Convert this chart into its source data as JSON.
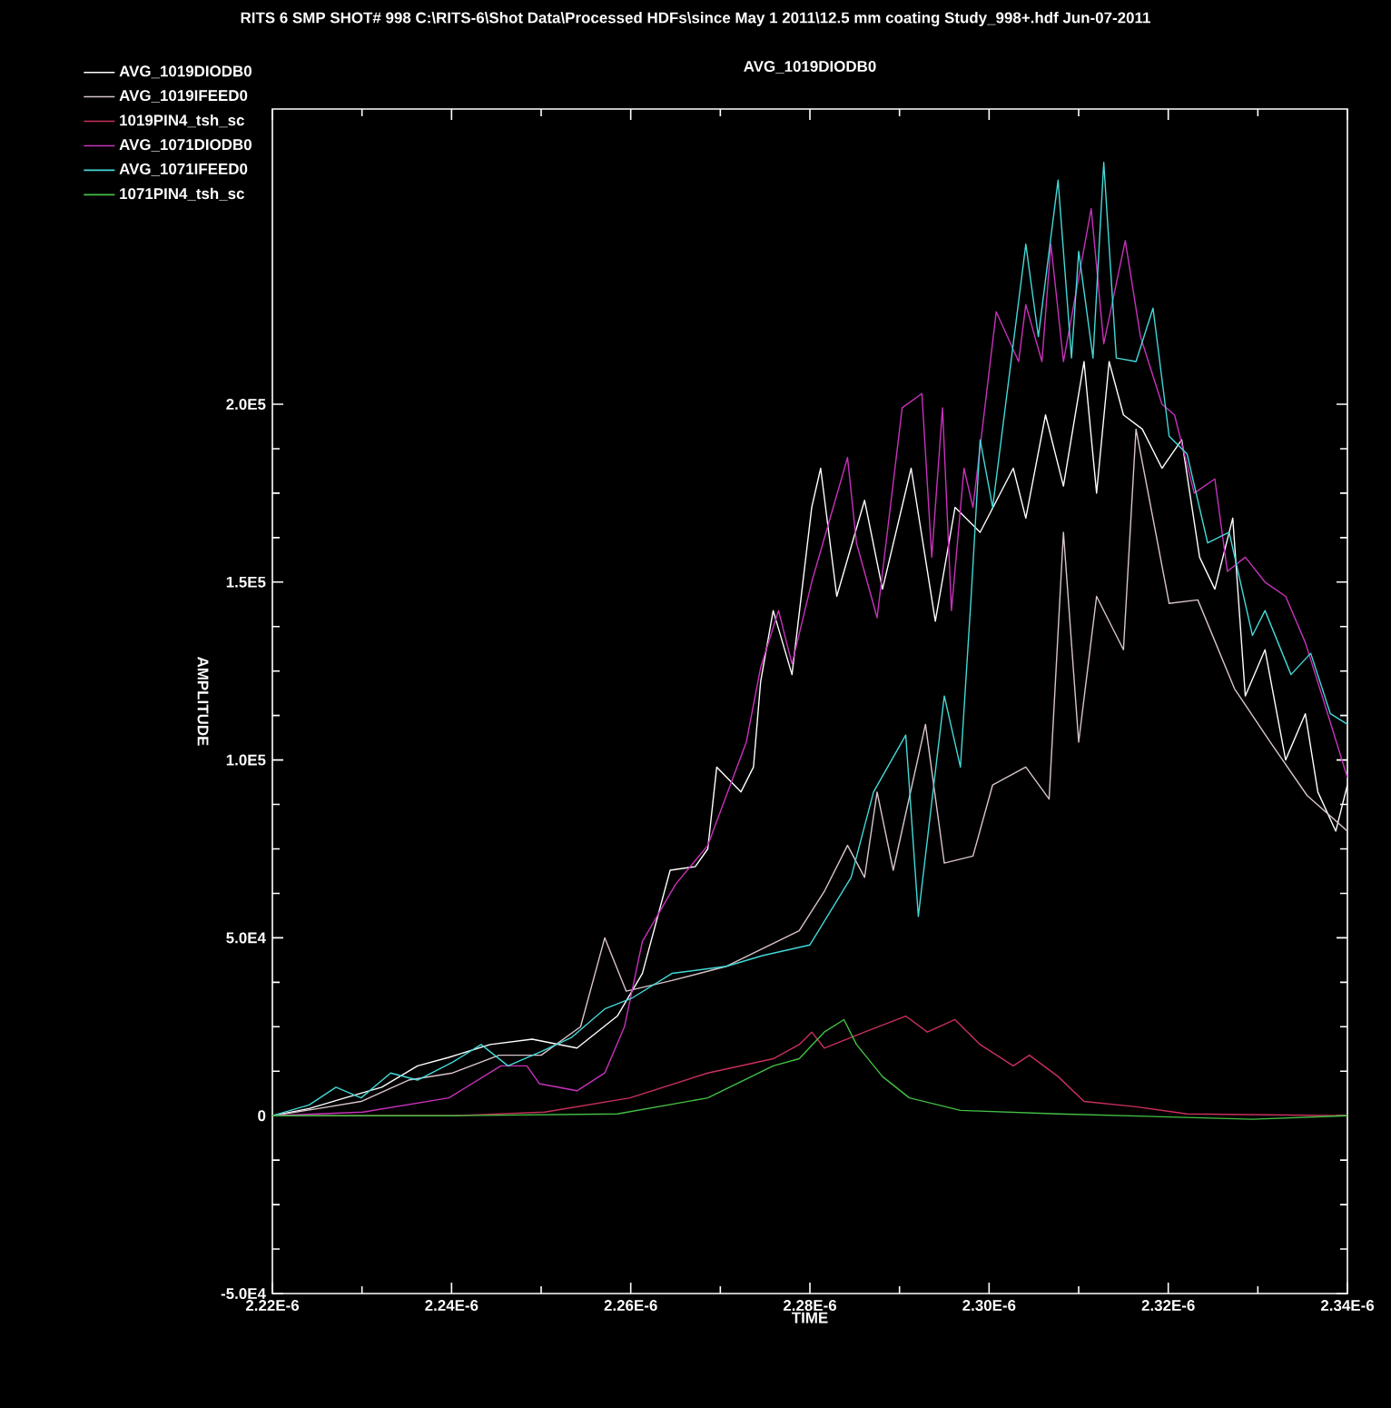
{
  "chart_data": {
    "type": "line",
    "title": "RITS 6 SMP SHOT# 998   C:\\RITS-6\\Shot Data\\Processed HDFs\\since May 1 2011\\12.5 mm coating Study_998+.hdf   Jun-07-2011",
    "subtitle": "AVG_1019DIODB0",
    "xlabel": "TIME",
    "ylabel": "AMPLITUDE",
    "xlim": [
      2.22e-06,
      2.34e-06
    ],
    "ylim": [
      -50000,
      283000
    ],
    "xticks": [
      {
        "value": 2.22e-06,
        "label": "2.22E-6"
      },
      {
        "value": 2.24e-06,
        "label": "2.24E-6"
      },
      {
        "value": 2.26e-06,
        "label": "2.26E-6"
      },
      {
        "value": 2.28e-06,
        "label": "2.28E-6"
      },
      {
        "value": 2.3e-06,
        "label": "2.30E-6"
      },
      {
        "value": 2.32e-06,
        "label": "2.32E-6"
      },
      {
        "value": 2.34e-06,
        "label": "2.34E-6"
      }
    ],
    "yticks": [
      {
        "value": -50000,
        "label": "-5.0E4"
      },
      0,
      {
        "value": 50000,
        "label": "5.0E4"
      },
      {
        "value": 100000,
        "label": "1.0E5"
      },
      {
        "value": 150000,
        "label": "1.5E5"
      },
      {
        "value": 200000,
        "label": "2.0E5"
      }
    ],
    "legend": "top left",
    "series": [
      {
        "name": "AVG_1019DIODB0",
        "color": "#ffffff",
        "x": [
          2.22e-06,
          2.2241e-06,
          2.2281e-06,
          2.2322e-06,
          2.2362e-06,
          2.2397e-06,
          2.2443e-06,
          2.249e-06,
          2.254e-06,
          2.2585e-06,
          2.2613e-06,
          2.2644e-06,
          2.2672e-06,
          2.2686e-06,
          2.2696e-06,
          2.2723e-06,
          2.2737e-06,
          2.2745e-06,
          2.2759e-06,
          2.278e-06,
          2.2802e-06,
          2.2812e-06,
          2.283e-06,
          2.2861e-06,
          2.2881e-06,
          2.2913e-06,
          2.294e-06,
          2.2962e-06,
          2.299e-06,
          2.3027e-06,
          2.3041e-06,
          2.3063e-06,
          2.3083e-06,
          2.3106e-06,
          2.312e-06,
          2.3134e-06,
          2.315e-06,
          2.3171e-06,
          2.3193e-06,
          2.3215e-06,
          2.3235e-06,
          2.3252e-06,
          2.3272e-06,
          2.3286e-06,
          2.3308e-06,
          2.3331e-06,
          2.3353e-06,
          2.3367e-06,
          2.3387e-06,
          2.34e-06
        ],
        "values": [
          0,
          2000,
          5000,
          8000,
          14000,
          16400,
          20000,
          21500,
          19000,
          28000,
          40000,
          69000,
          70000,
          75000,
          98000,
          91000,
          98000,
          122000,
          142000,
          124000,
          171000,
          182000,
          146000,
          173000,
          148000,
          182000,
          139000,
          171000,
          164000,
          182000,
          168000,
          197000,
          177000,
          212000,
          175000,
          212000,
          197000,
          193000,
          182000,
          190000,
          157000,
          148000,
          168000,
          118000,
          131000,
          100000,
          113000,
          91000,
          80000,
          93000
        ]
      },
      {
        "name": "AVG_1019IFEED0",
        "color": "#d8c4cc",
        "x": [
          2.22e-06,
          2.2251e-06,
          2.2299e-06,
          2.2352e-06,
          2.2401e-06,
          2.2453e-06,
          2.25e-06,
          2.2544e-06,
          2.2571e-06,
          2.2595e-06,
          2.2646e-06,
          2.2707e-06,
          2.2788e-06,
          2.2816e-06,
          2.2842e-06,
          2.2861e-06,
          2.2875e-06,
          2.2893e-06,
          2.2929e-06,
          2.295e-06,
          2.2982e-06,
          2.3004e-06,
          2.3041e-06,
          2.3067e-06,
          2.3083e-06,
          2.31e-06,
          2.312e-06,
          2.315e-06,
          2.3164e-06,
          2.3201e-06,
          2.3233e-06,
          2.3274e-06,
          2.3314e-06,
          2.3355e-06,
          2.34e-06
        ],
        "values": [
          0,
          2000,
          4000,
          10000,
          12000,
          17000,
          17000,
          25000,
          50000,
          35000,
          38000,
          42000,
          52000,
          63000,
          76000,
          67000,
          91000,
          69000,
          110000,
          71000,
          73000,
          93000,
          98000,
          89000,
          164000,
          105000,
          146000,
          131000,
          193000,
          144000,
          145000,
          120000,
          105000,
          90000,
          80000
        ]
      },
      {
        "name": "1019PIN4_tsh_sc",
        "color": "#c8305c",
        "x": [
          2.22e-06,
          2.2403e-06,
          2.2504e-06,
          2.2599e-06,
          2.2686e-06,
          2.2759e-06,
          2.2788e-06,
          2.2802e-06,
          2.2816e-06,
          2.2861e-06,
          2.2907e-06,
          2.2931e-06,
          2.2962e-06,
          2.299e-06,
          2.3027e-06,
          2.3045e-06,
          2.3077e-06,
          2.3106e-06,
          2.3164e-06,
          2.3221e-06,
          2.34e-06
        ],
        "values": [
          0,
          0,
          1000,
          5000,
          12000,
          16000,
          20000,
          23500,
          19000,
          23500,
          28000,
          23500,
          27000,
          20000,
          14000,
          17000,
          11000,
          4000,
          2500,
          500,
          0
        ]
      },
      {
        "name": "AVG_1071DIODB0",
        "color": "#c832bc",
        "x": [
          2.22e-06,
          2.2301e-06,
          2.2397e-06,
          2.2455e-06,
          2.2484e-06,
          2.2498e-06,
          2.254e-06,
          2.2571e-06,
          2.2593e-06,
          2.2613e-06,
          2.265e-06,
          2.2686e-06,
          2.2729e-06,
          2.2745e-06,
          2.2765e-06,
          2.278e-06,
          2.2802e-06,
          2.2842e-06,
          2.2852e-06,
          2.2875e-06,
          2.2903e-06,
          2.2925e-06,
          2.2936e-06,
          2.2948e-06,
          2.2958e-06,
          2.2972e-06,
          2.2982e-06,
          2.3008e-06,
          2.3033e-06,
          2.3041e-06,
          2.3059e-06,
          2.3069e-06,
          2.3083e-06,
          2.3114e-06,
          2.3128e-06,
          2.3152e-06,
          2.3169e-06,
          2.3193e-06,
          2.3207e-06,
          2.3229e-06,
          2.3252e-06,
          2.3266e-06,
          2.3286e-06,
          2.3308e-06,
          2.3331e-06,
          2.3353e-06,
          2.3373e-06,
          2.34e-06
        ],
        "values": [
          0,
          1000,
          5000,
          14000,
          14000,
          9000,
          7000,
          12000,
          25000,
          49000,
          65000,
          76000,
          105000,
          126000,
          142000,
          127000,
          150000,
          185000,
          161000,
          140000,
          199000,
          203000,
          157000,
          199000,
          142000,
          182000,
          171000,
          226000,
          212000,
          228000,
          212000,
          245000,
          212000,
          255000,
          217000,
          246000,
          219000,
          200000,
          197000,
          175000,
          179000,
          153000,
          157000,
          150000,
          146000,
          133000,
          117000,
          95000
        ]
      },
      {
        "name": "AVG_1071IFEED0",
        "color": "#44d8d8",
        "x": [
          2.22e-06,
          2.2241e-06,
          2.2271e-06,
          2.2299e-06,
          2.2332e-06,
          2.2362e-06,
          2.2401e-06,
          2.2433e-06,
          2.2463e-06,
          2.25e-06,
          2.2534e-06,
          2.2571e-06,
          2.2601e-06,
          2.2646e-06,
          2.2707e-06,
          2.2747e-06,
          2.28e-06,
          2.2846e-06,
          2.2871e-06,
          2.2907e-06,
          2.2921e-06,
          2.295e-06,
          2.2968e-06,
          2.298e-06,
          2.299e-06,
          2.3004e-06,
          2.3041e-06,
          2.3055e-06,
          2.3077e-06,
          2.3092e-06,
          2.31e-06,
          2.3116e-06,
          2.3128e-06,
          2.3142e-06,
          2.3164e-06,
          2.3183e-06,
          2.3201e-06,
          2.3221e-06,
          2.3244e-06,
          2.3268e-06,
          2.3294e-06,
          2.3308e-06,
          2.3337e-06,
          2.3359e-06,
          2.3381e-06,
          2.34e-06
        ],
        "values": [
          0,
          3000,
          8000,
          5000,
          12000,
          10000,
          15000,
          20000,
          14000,
          18000,
          22000,
          30000,
          33000,
          40000,
          42000,
          45000,
          48000,
          67000,
          91000,
          107000,
          56000,
          118000,
          98000,
          146000,
          190000,
          171000,
          245000,
          219000,
          263000,
          213000,
          243000,
          213000,
          268000,
          213000,
          212000,
          227000,
          191000,
          186000,
          161000,
          164000,
          135000,
          142000,
          124000,
          130000,
          113000,
          110000
        ]
      },
      {
        "name": "1071PIN4_tsh_sc",
        "color": "#44c044",
        "x": [
          2.22e-06,
          2.2403e-06,
          2.2585e-06,
          2.2686e-06,
          2.2759e-06,
          2.2788e-06,
          2.2816e-06,
          2.2838e-06,
          2.2852e-06,
          2.2881e-06,
          2.2911e-06,
          2.2968e-06,
          2.3077e-06,
          2.3294e-06,
          2.34e-06
        ],
        "values": [
          0,
          0,
          500,
          5000,
          14000,
          16000,
          23500,
          27000,
          20000,
          11000,
          5000,
          1500,
          500,
          -1000,
          0
        ]
      }
    ]
  }
}
